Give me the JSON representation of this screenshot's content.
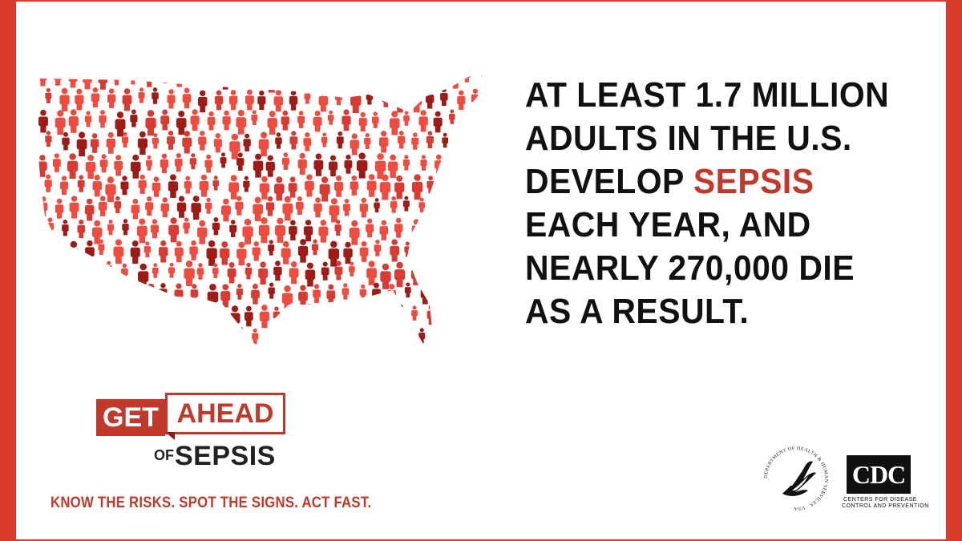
{
  "headline": {
    "line1": "AT LEAST 1.7 MILLION",
    "line2": "ADULTS IN THE U.S.",
    "line3_prefix": "DEVELOP ",
    "line3_accent": "SEPSIS",
    "line4": "EACH YEAR, AND",
    "line5": "NEARLY 270,000 DIE",
    "line6": "AS A RESULT."
  },
  "campaign_logo": {
    "get": "GET",
    "ahead": "AHEAD",
    "of": "OF",
    "sepsis": "SEPSIS"
  },
  "tagline": "KNOW THE RISKS. SPOT THE SIGNS. ACT FAST.",
  "hhs_seal": {
    "ring_text": "DEPARTMENT OF HEALTH & HUMAN SERVICES · USA"
  },
  "cdc": {
    "mark": "CDC",
    "line1": "CENTERS FOR DISEASE",
    "line2": "CONTROL AND PREVENTION"
  },
  "colors": {
    "accent": "#c0392b",
    "border": "#d63b2c",
    "figure_light": "#ef4b3f",
    "figure_mid": "#d93a31",
    "figure_dark": "#9e1b16"
  },
  "illustration": "map-of-united-states-made-of-people-icons"
}
